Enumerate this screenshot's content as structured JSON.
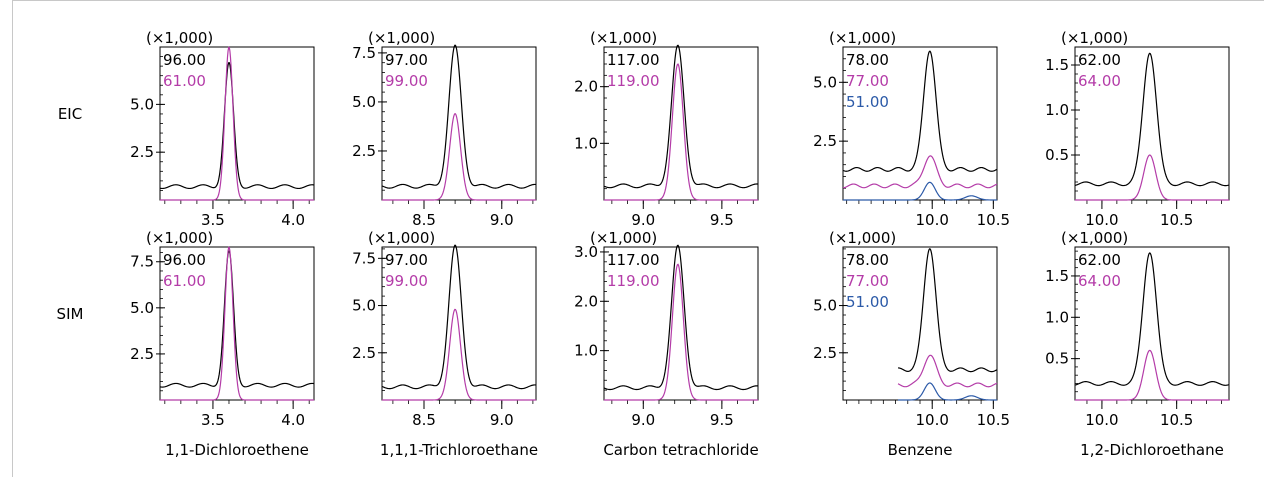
{
  "row_labels": [
    "EIC",
    "SIM"
  ],
  "colors": {
    "black": "#000000",
    "magenta": "#b43ca8",
    "blue": "#2c5aa8",
    "axis": "#000000"
  },
  "chart_data": [
    {
      "type": "line",
      "mode": "EIC",
      "compound": "1,1-Dichloroethene",
      "multiplier": "(×1,000)",
      "xlim": [
        3.17,
        4.13
      ],
      "ylim": [
        0,
        8.0
      ],
      "xticks": [
        "3.5",
        "4.0"
      ],
      "yticks": [
        "2.5",
        "5.0"
      ],
      "peak_rt": 3.6,
      "traces": [
        {
          "mz": "96.00",
          "color": "black",
          "baseline": 0.7,
          "height": 6.4,
          "width": 0.028
        },
        {
          "mz": "61.00",
          "color": "magenta",
          "baseline": 0.0,
          "height": 8.0,
          "width": 0.025
        }
      ]
    },
    {
      "type": "line",
      "mode": "EIC",
      "compound": "1,1,1-Trichloroethane",
      "multiplier": "(×1,000)",
      "xlim": [
        8.23,
        9.22
      ],
      "ylim": [
        0,
        7.8
      ],
      "xticks": [
        "8.5",
        "9.0"
      ],
      "yticks": [
        "2.5",
        "5.0",
        "7.5"
      ],
      "peak_rt": 8.7,
      "traces": [
        {
          "mz": "97.00",
          "color": "black",
          "baseline": 0.7,
          "height": 7.1,
          "width": 0.04
        },
        {
          "mz": "99.00",
          "color": "magenta",
          "baseline": 0.0,
          "height": 4.4,
          "width": 0.035
        }
      ]
    },
    {
      "type": "line",
      "mode": "EIC",
      "compound": "Carbon tetrachloride",
      "multiplier": "(×1,000)",
      "xlim": [
        8.75,
        9.73
      ],
      "ylim": [
        0,
        2.7
      ],
      "xticks": [
        "9.0",
        "9.5"
      ],
      "yticks": [
        "1.0",
        "2.0"
      ],
      "peak_rt": 9.22,
      "traces": [
        {
          "mz": "117.00",
          "color": "black",
          "baseline": 0.25,
          "height": 2.45,
          "width": 0.04
        },
        {
          "mz": "119.00",
          "color": "magenta",
          "baseline": 0.0,
          "height": 2.4,
          "width": 0.035
        }
      ]
    },
    {
      "type": "line",
      "mode": "EIC",
      "compound": "Benzene",
      "multiplier": "(×1,000)",
      "xlim": [
        9.27,
        10.53
      ],
      "ylim": [
        0,
        6.5
      ],
      "xticks": [
        "10.0",
        "10.5"
      ],
      "yticks": [
        "2.5",
        "5.0"
      ],
      "peak_rt": 9.98,
      "traces": [
        {
          "mz": "78.00",
          "color": "black",
          "baseline": 1.3,
          "height": 5.1,
          "width": 0.05
        },
        {
          "mz": "77.00",
          "color": "magenta",
          "baseline": 0.6,
          "height": 1.3,
          "width": 0.05
        },
        {
          "mz": "51.00",
          "color": "blue",
          "baseline": 0.0,
          "height": 0.75,
          "width": 0.045
        }
      ]
    },
    {
      "type": "line",
      "mode": "EIC",
      "compound": "1,2-Dichloroethane",
      "multiplier": "(×1,000)",
      "xlim": [
        9.82,
        10.85
      ],
      "ylim": [
        0,
        1.7
      ],
      "xticks": [
        "10.0",
        "10.5"
      ],
      "yticks": [
        "0.5",
        "1.0",
        "1.5"
      ],
      "peak_rt": 10.32,
      "traces": [
        {
          "mz": "62.00",
          "color": "black",
          "baseline": 0.18,
          "height": 1.47,
          "width": 0.045
        },
        {
          "mz": "64.00",
          "color": "magenta",
          "baseline": 0.0,
          "height": 0.5,
          "width": 0.04
        }
      ]
    },
    {
      "type": "line",
      "mode": "SIM",
      "compound": "1,1-Dichloroethene",
      "multiplier": "(×1,000)",
      "xlim": [
        3.17,
        4.13
      ],
      "ylim": [
        0,
        8.3
      ],
      "xticks": [
        "3.5",
        "4.0"
      ],
      "yticks": [
        "2.5",
        "5.0",
        "7.5"
      ],
      "peak_rt": 3.6,
      "traces": [
        {
          "mz": "96.00",
          "color": "black",
          "baseline": 0.8,
          "height": 7.2,
          "width": 0.028
        },
        {
          "mz": "61.00",
          "color": "magenta",
          "baseline": 0.0,
          "height": 8.3,
          "width": 0.025
        }
      ]
    },
    {
      "type": "line",
      "mode": "SIM",
      "compound": "1,1,1-Trichloroethane",
      "multiplier": "(×1,000)",
      "xlim": [
        8.23,
        9.22
      ],
      "ylim": [
        0,
        8.1
      ],
      "xticks": [
        "8.5",
        "9.0"
      ],
      "yticks": [
        "2.5",
        "5.0",
        "7.5"
      ],
      "peak_rt": 8.7,
      "traces": [
        {
          "mz": "97.00",
          "color": "black",
          "baseline": 0.7,
          "height": 7.4,
          "width": 0.04
        },
        {
          "mz": "99.00",
          "color": "magenta",
          "baseline": 0.0,
          "height": 4.8,
          "width": 0.035
        }
      ]
    },
    {
      "type": "line",
      "mode": "SIM",
      "compound": "Carbon tetrachloride",
      "multiplier": "(×1,000)",
      "xlim": [
        8.75,
        9.73
      ],
      "ylim": [
        0,
        3.1
      ],
      "xticks": [
        "9.0",
        "9.5"
      ],
      "yticks": [
        "1.0",
        "2.0",
        "3.0"
      ],
      "peak_rt": 9.22,
      "traces": [
        {
          "mz": "117.00",
          "color": "black",
          "baseline": 0.25,
          "height": 2.85,
          "width": 0.04
        },
        {
          "mz": "119.00",
          "color": "magenta",
          "baseline": 0.0,
          "height": 2.75,
          "width": 0.035
        }
      ]
    },
    {
      "type": "line",
      "mode": "SIM",
      "compound": "Benzene",
      "multiplier": "(×1,000)",
      "xlim": [
        9.27,
        10.53
      ],
      "ylim": [
        0,
        8.1
      ],
      "xticks": [
        "10.0",
        "10.5"
      ],
      "yticks": [
        "2.5",
        "5.0"
      ],
      "peak_rt": 9.98,
      "x_start": 9.72,
      "traces": [
        {
          "mz": "78.00",
          "color": "black",
          "baseline": 1.6,
          "height": 6.5,
          "width": 0.05
        },
        {
          "mz": "77.00",
          "color": "magenta",
          "baseline": 0.8,
          "height": 1.6,
          "width": 0.05
        },
        {
          "mz": "51.00",
          "color": "blue",
          "baseline": 0.0,
          "height": 0.9,
          "width": 0.045
        }
      ]
    },
    {
      "type": "line",
      "mode": "SIM",
      "compound": "1,2-Dichloroethane",
      "multiplier": "(×1,000)",
      "xlim": [
        9.82,
        10.85
      ],
      "ylim": [
        0,
        1.85
      ],
      "xticks": [
        "10.0",
        "10.5"
      ],
      "yticks": [
        "0.5",
        "1.0",
        "1.5"
      ],
      "peak_rt": 10.32,
      "traces": [
        {
          "mz": "62.00",
          "color": "black",
          "baseline": 0.2,
          "height": 1.6,
          "width": 0.045
        },
        {
          "mz": "64.00",
          "color": "magenta",
          "baseline": 0.0,
          "height": 0.6,
          "width": 0.04
        }
      ]
    }
  ]
}
